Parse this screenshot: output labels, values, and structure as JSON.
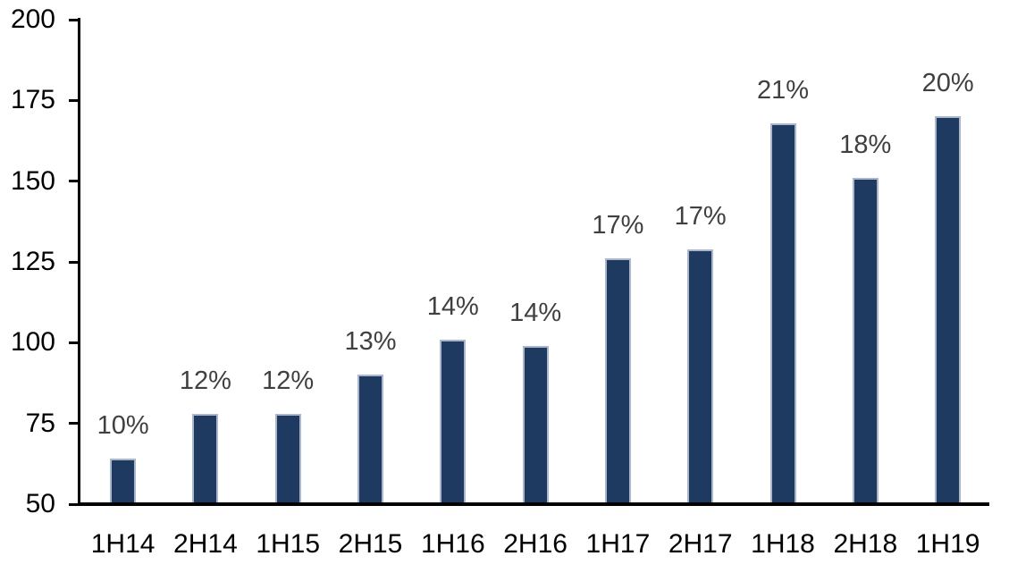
{
  "chart_data": {
    "type": "bar",
    "title": "",
    "xlabel": "",
    "ylabel": "",
    "categories": [
      "1H14",
      "2H14",
      "1H15",
      "2H15",
      "1H16",
      "2H16",
      "1H17",
      "2H17",
      "1H18",
      "2H18",
      "1H19"
    ],
    "values": [
      64,
      78,
      78,
      90,
      101,
      99,
      126,
      129,
      168,
      151,
      170
    ],
    "bar_labels": [
      "10%",
      "12%",
      "12%",
      "13%",
      "14%",
      "14%",
      "17%",
      "17%",
      "21%",
      "18%",
      "20%"
    ],
    "ylim": [
      50,
      200
    ],
    "yticks": [
      50,
      75,
      100,
      125,
      150,
      175,
      200
    ],
    "grid": false,
    "legend": false,
    "colors": {
      "bar_fill": "#1F3A60",
      "bar_border": "#A9B6CC",
      "data_label": "#404040",
      "axis_line": "#000000",
      "axis_text": "#000000",
      "background": "#FFFFFF"
    }
  }
}
